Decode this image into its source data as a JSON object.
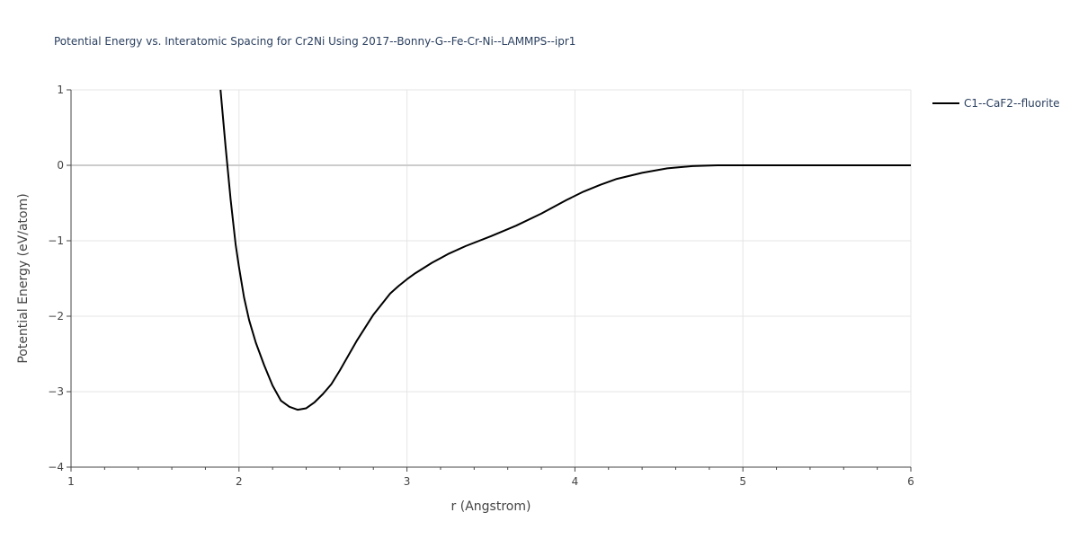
{
  "chart_data": {
    "type": "line",
    "title": "Potential Energy vs. Interatomic Spacing for Cr2Ni Using 2017--Bonny-G--Fe-Cr-Ni--LAMMPS--ipr1",
    "xlabel": "r (Angstrom)",
    "ylabel": "Potential Energy (eV/atom)",
    "xlim": [
      1,
      6
    ],
    "ylim": [
      -4,
      1
    ],
    "xticks": [
      1,
      2,
      3,
      4,
      5,
      6
    ],
    "xtick_labels": [
      "1",
      "2",
      "3",
      "4",
      "5",
      "6"
    ],
    "yticks": [
      1,
      0,
      -1,
      -2,
      -3,
      -4
    ],
    "ytick_labels": [
      "1",
      "0",
      "−1",
      "−2",
      "−3",
      "−4"
    ],
    "grid": true,
    "legend_position": "top-right",
    "colors": {
      "line": "#000000",
      "grid": "#e5e5e5",
      "zeroline": "#cccccc",
      "text": "#2a3f5f",
      "axis": "#444444"
    },
    "series": [
      {
        "name": "C1--CaF2--fluorite",
        "x": [
          1.89,
          1.92,
          1.95,
          1.98,
          2.0,
          2.03,
          2.06,
          2.1,
          2.15,
          2.2,
          2.25,
          2.3,
          2.35,
          2.4,
          2.45,
          2.5,
          2.55,
          2.6,
          2.7,
          2.8,
          2.9,
          2.95,
          3.0,
          3.05,
          3.1,
          3.15,
          3.2,
          3.25,
          3.35,
          3.5,
          3.65,
          3.8,
          3.95,
          4.05,
          4.15,
          4.25,
          4.4,
          4.55,
          4.7,
          4.85,
          5.0,
          5.5,
          6.0
        ],
        "y": [
          1.0,
          0.25,
          -0.45,
          -1.05,
          -1.35,
          -1.75,
          -2.05,
          -2.35,
          -2.65,
          -2.92,
          -3.12,
          -3.2,
          -3.24,
          -3.22,
          -3.14,
          -3.03,
          -2.9,
          -2.72,
          -2.33,
          -1.98,
          -1.7,
          -1.6,
          -1.51,
          -1.43,
          -1.36,
          -1.29,
          -1.23,
          -1.17,
          -1.07,
          -0.94,
          -0.8,
          -0.64,
          -0.46,
          -0.35,
          -0.26,
          -0.18,
          -0.1,
          -0.04,
          -0.01,
          0.0,
          0.0,
          0.0,
          0.0
        ]
      }
    ]
  }
}
